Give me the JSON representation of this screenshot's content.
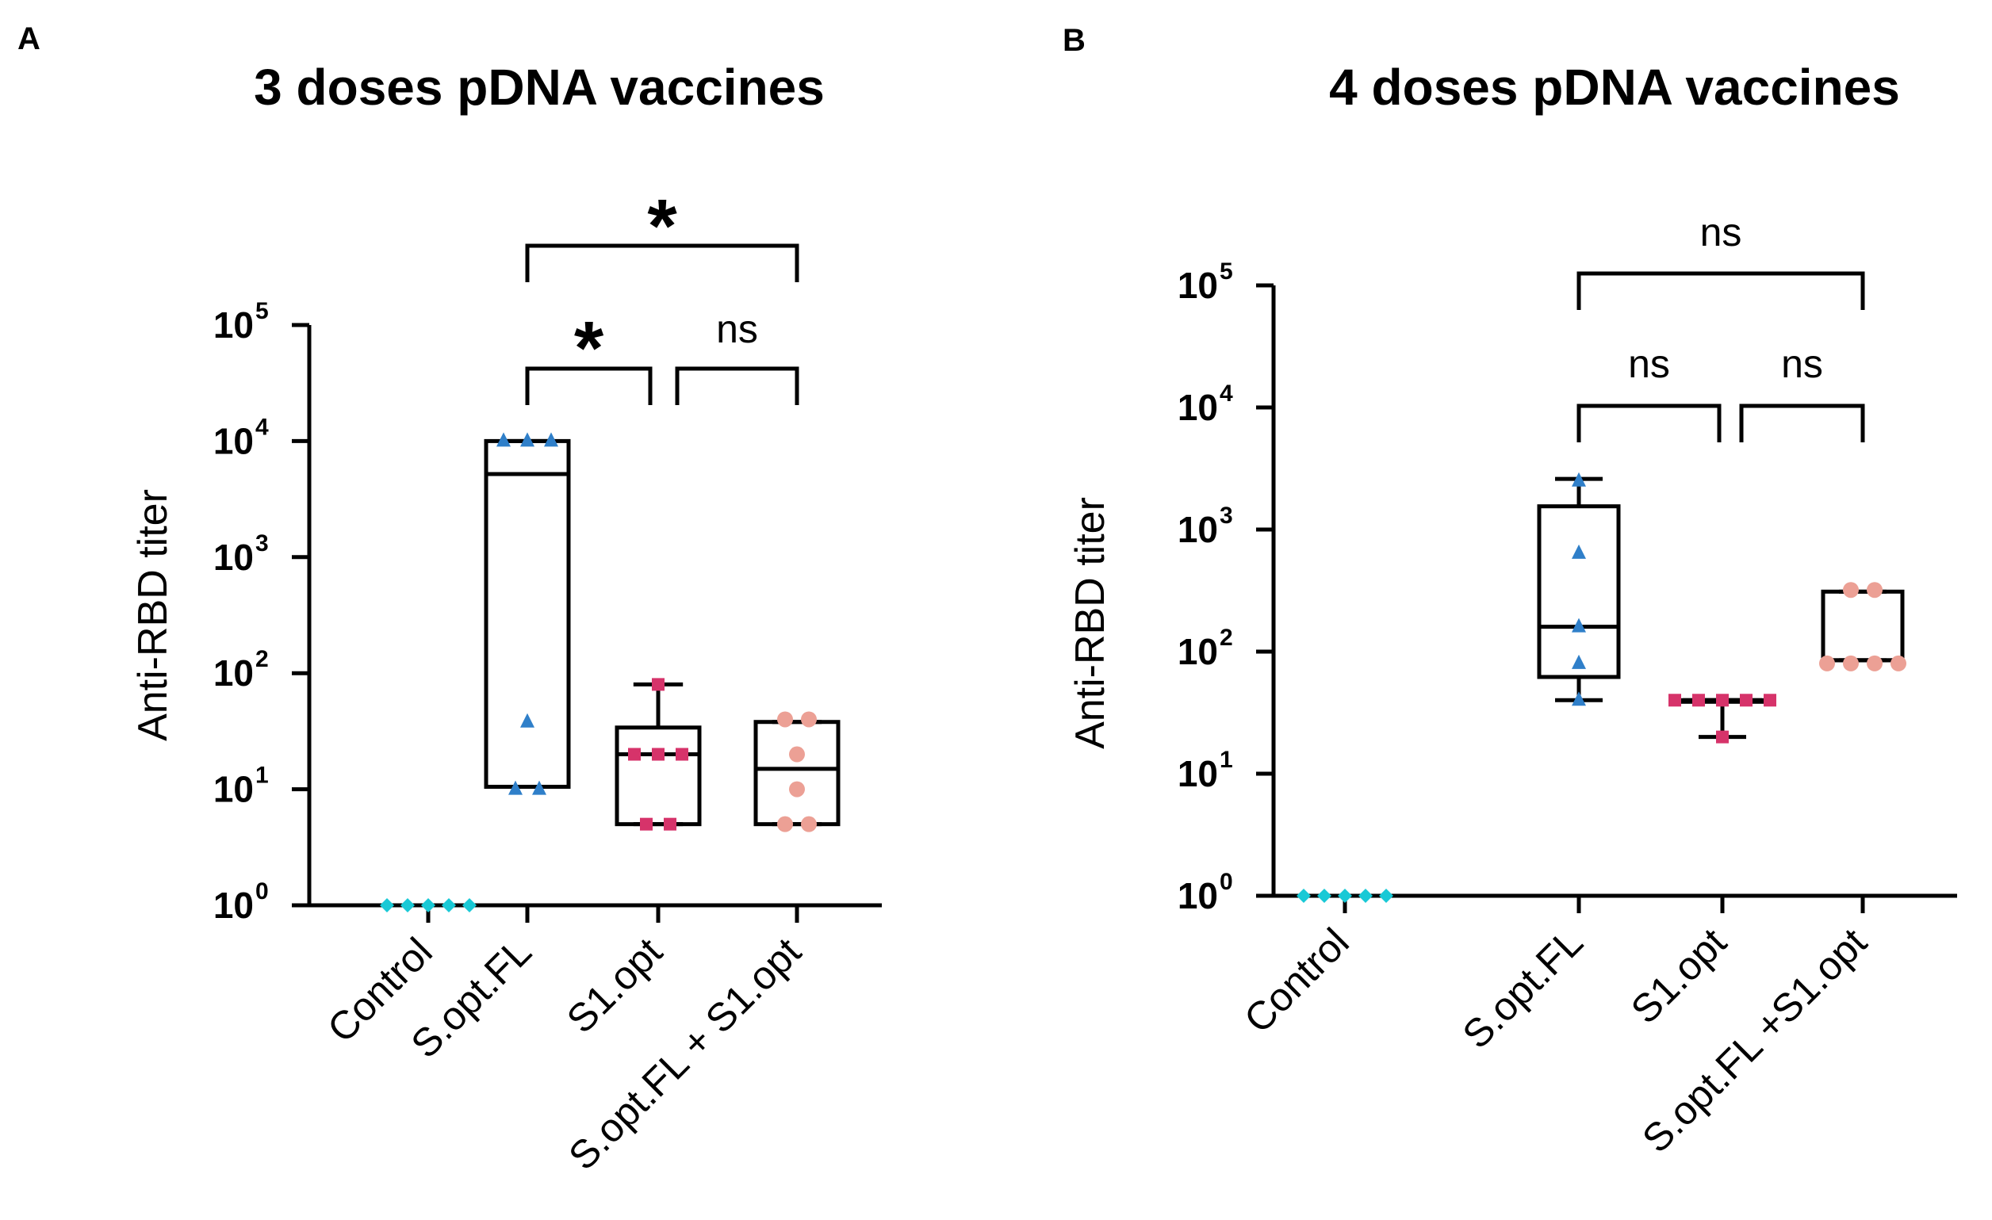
{
  "chart_data": [
    {
      "panel_label": "A",
      "type": "box",
      "title": "3 doses pDNA vaccines",
      "ylabel": "Anti-RBD titer",
      "yscale": "log",
      "ylim": [
        1,
        100000
      ],
      "yticks": [
        {
          "base": "10",
          "exp": "0"
        },
        {
          "base": "10",
          "exp": "1"
        },
        {
          "base": "10",
          "exp": "2"
        },
        {
          "base": "10",
          "exp": "3"
        },
        {
          "base": "10",
          "exp": "4"
        },
        {
          "base": "10",
          "exp": "5"
        }
      ],
      "categories": [
        "Control",
        "S.opt.FL",
        "S1.opt",
        "S.opt.FL + S1.opt"
      ],
      "groups": [
        {
          "name": "Control",
          "color": "#19c9d6",
          "marker": "diamond",
          "box": null,
          "points": [
            1,
            1,
            1,
            1,
            1
          ]
        },
        {
          "name": "S.opt.FL",
          "color": "#2f7fc9",
          "marker": "triangle",
          "box": {
            "min": 10.5,
            "q1": 10.5,
            "median": 5200,
            "q3": 10000,
            "max": 10000
          },
          "points": [
            10000,
            10000,
            10000,
            38,
            10,
            10
          ]
        },
        {
          "name": "S1.opt",
          "color": "#d6336a",
          "marker": "square",
          "box": {
            "min": 5,
            "q1": 5,
            "median": 20,
            "q3": 34,
            "max": 80
          },
          "points": [
            80,
            20,
            20,
            20,
            5,
            5
          ]
        },
        {
          "name": "S.opt.FL + S1.opt",
          "color": "#eca095",
          "marker": "circle",
          "box": {
            "min": 5,
            "q1": 5,
            "median": 15,
            "q3": 38,
            "max": 38
          },
          "points": [
            40,
            40,
            20,
            10,
            5,
            5
          ]
        }
      ],
      "significance": [
        {
          "from": 1,
          "to": 3,
          "label": "*"
        },
        {
          "from": 1,
          "to": 2,
          "label": "*"
        },
        {
          "from": 2,
          "to": 3,
          "label": "ns"
        }
      ]
    },
    {
      "panel_label": "B",
      "type": "box",
      "title": "4 doses pDNA vaccines",
      "ylabel": "Anti-RBD titer",
      "yscale": "log",
      "ylim": [
        1,
        100000
      ],
      "yticks": [
        {
          "base": "10",
          "exp": "0"
        },
        {
          "base": "10",
          "exp": "1"
        },
        {
          "base": "10",
          "exp": "2"
        },
        {
          "base": "10",
          "exp": "3"
        },
        {
          "base": "10",
          "exp": "4"
        },
        {
          "base": "10",
          "exp": "5"
        }
      ],
      "categories": [
        "Control",
        "S.opt.FL",
        "S1.opt",
        "S.opt.FL +S1.opt"
      ],
      "groups": [
        {
          "name": "Control",
          "color": "#19c9d6",
          "marker": "diamond",
          "box": null,
          "points": [
            1,
            1,
            1,
            1,
            1
          ]
        },
        {
          "name": "S.opt.FL",
          "color": "#2f7fc9",
          "marker": "triangle",
          "box": {
            "min": 40,
            "q1": 62,
            "median": 160,
            "q3": 1550,
            "max": 2600
          },
          "points": [
            2500,
            640,
            160,
            80,
            40
          ]
        },
        {
          "name": "S1.opt",
          "color": "#d6336a",
          "marker": "square",
          "box": {
            "min": 20,
            "q1": 40,
            "median": 40,
            "q3": 40,
            "max": 40
          },
          "points": [
            40,
            40,
            40,
            40,
            40,
            20
          ]
        },
        {
          "name": "S.opt.FL +S1.opt",
          "color": "#eca095",
          "marker": "circle",
          "box": {
            "min": 85,
            "q1": 85,
            "median": 85,
            "q3": 310,
            "max": 310
          },
          "points": [
            320,
            320,
            80,
            80,
            80,
            80
          ]
        }
      ],
      "significance": [
        {
          "from": 1,
          "to": 3,
          "label": "ns"
        },
        {
          "from": 1,
          "to": 2,
          "label": "ns"
        },
        {
          "from": 2,
          "to": 3,
          "label": "ns"
        }
      ]
    }
  ]
}
